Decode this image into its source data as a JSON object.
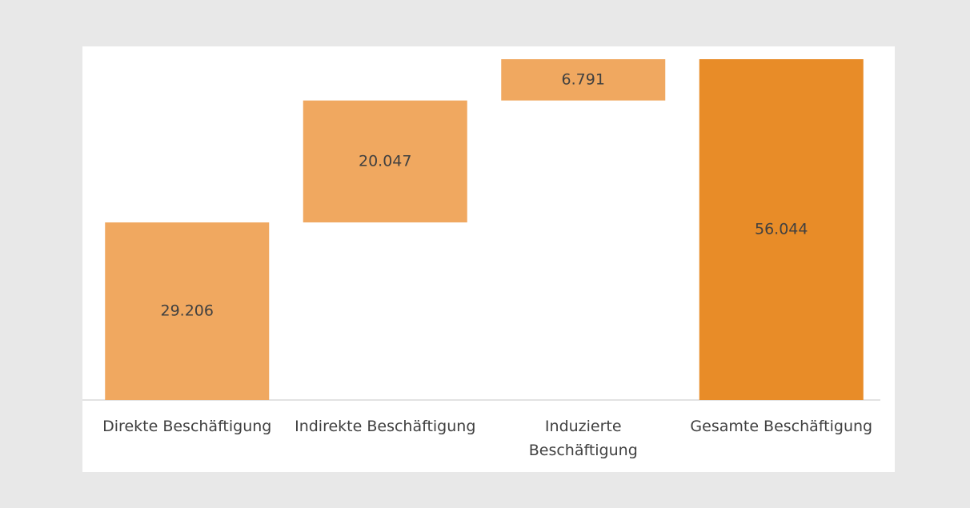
{
  "chart_data": {
    "type": "waterfall",
    "categories": [
      "Direkte Beschäftigung",
      "Indirekte Beschäftigung",
      "Induzierte\nBeschäftigung",
      "Gesamte Beschäftigung"
    ],
    "values": [
      29206,
      20047,
      6791,
      56044
    ],
    "value_labels": [
      "29.206",
      "20.047",
      "6.791",
      "56.044"
    ],
    "is_total": [
      false,
      false,
      false,
      true
    ],
    "colors": [
      "#f0a860",
      "#f0a860",
      "#f0a860",
      "#e88c28"
    ],
    "ylim": [
      0,
      56044
    ]
  }
}
